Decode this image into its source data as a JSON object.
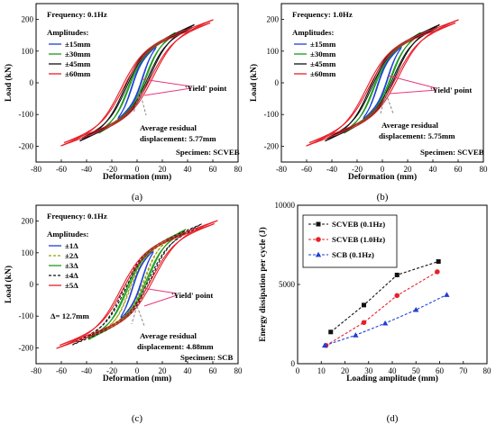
{
  "colors": {
    "blue": "#1f3fd6",
    "green": "#1a9b1a",
    "black": "#111111",
    "red": "#e8202a",
    "olive": "#9aa000",
    "pink": "#e8377a",
    "grey": "#888888"
  },
  "chart_data": [
    {
      "type": "line",
      "panel_label": "(a)",
      "frequency": "Frequency: 0.1Hz",
      "legend_title": "Amplitudes:",
      "xlabel": "Deformation (mm)",
      "ylabel": "Load (kN)",
      "xlim": [
        -80,
        80
      ],
      "ylim": [
        -250,
        250
      ],
      "xticks": [
        "-80",
        "-60",
        "-40",
        "-20",
        "0",
        "20",
        "40",
        "60",
        "80"
      ],
      "yticks": [
        "-200",
        "-100",
        "0",
        "100",
        "200"
      ],
      "series": [
        {
          "name": "±15mm",
          "amp": 15,
          "color": "#1f3fd6"
        },
        {
          "name": "±30mm",
          "amp": 30,
          "color": "#1a9b1a"
        },
        {
          "name": "±45mm",
          "amp": 45,
          "color": "#111111"
        },
        {
          "name": "±60mm",
          "amp": 60,
          "color": "#e8202a"
        }
      ],
      "yield_label": "'Yield' point",
      "residual_label_1": "Average residual",
      "residual_label_2": "displacement: 5.77mm",
      "specimen": "Specimen: SCVEB"
    },
    {
      "type": "line",
      "panel_label": "(b)",
      "frequency": "Frequency: 1.0Hz",
      "legend_title": "Amplitudes:",
      "xlabel": "Deformation (mm)",
      "ylabel": "Load (kN)",
      "xlim": [
        -80,
        80
      ],
      "ylim": [
        -250,
        250
      ],
      "xticks": [
        "-80",
        "-60",
        "-40",
        "-20",
        "0",
        "20",
        "40",
        "60",
        "80"
      ],
      "yticks": [
        "-200",
        "-100",
        "0",
        "100",
        "200"
      ],
      "series": [
        {
          "name": "±15mm",
          "amp": 15,
          "color": "#1f3fd6"
        },
        {
          "name": "±30mm",
          "amp": 30,
          "color": "#1a9b1a"
        },
        {
          "name": "±45mm",
          "amp": 45,
          "color": "#111111"
        },
        {
          "name": "±60mm",
          "amp": 60,
          "color": "#e8202a"
        }
      ],
      "yield_label": "'Yield' point",
      "residual_label_1": "Average residual",
      "residual_label_2": "displacement: 5.75mm",
      "specimen": "Specimen: SCVEB"
    },
    {
      "type": "line",
      "panel_label": "(c)",
      "frequency": "Frequency: 0.1Hz",
      "legend_title": "Amplitudes:",
      "xlabel": "Deformation (mm)",
      "ylabel": "Load (kN)",
      "xlim": [
        -80,
        80
      ],
      "ylim": [
        -250,
        250
      ],
      "xticks": [
        "-80",
        "-60",
        "-40",
        "-20",
        "0",
        "20",
        "40",
        "60",
        "80"
      ],
      "yticks": [
        "-200",
        "-100",
        "0",
        "100",
        "200"
      ],
      "series": [
        {
          "name": "±1Δ",
          "amp": 12.7,
          "color": "#1f3fd6",
          "dash": false
        },
        {
          "name": "±2Δ",
          "amp": 25.4,
          "color": "#9aa000",
          "dash": true
        },
        {
          "name": "±3Δ",
          "amp": 38.1,
          "color": "#1a9b1a",
          "dash": false
        },
        {
          "name": "±4Δ",
          "amp": 50.8,
          "color": "#111111",
          "dash": true
        },
        {
          "name": "±5Δ",
          "amp": 63.5,
          "color": "#e8202a",
          "dash": false
        }
      ],
      "delta_note": "Δ= 12.7mm",
      "yield_label": "'Yield' point",
      "residual_label_1": "Average residual",
      "residual_label_2": "displacement: 4.88mm",
      "specimen": "Specimen: SCB"
    },
    {
      "type": "scatter",
      "panel_label": "(d)",
      "xlabel": "Loading amplitude (mm)",
      "ylabel": "Energy dissipation per cycle (J)",
      "xlim": [
        0,
        80
      ],
      "ylim": [
        0,
        10000
      ],
      "xticks": [
        "0",
        "10",
        "20",
        "30",
        "40",
        "50",
        "60",
        "70",
        "80"
      ],
      "yticks": [
        "0",
        "5000",
        "10000"
      ],
      "series": [
        {
          "name": "SCVEB (0.1Hz)",
          "marker": "square",
          "color": "#111111",
          "x": [
            14,
            28,
            42,
            59.5
          ],
          "y": [
            2000,
            3700,
            5600,
            6450
          ]
        },
        {
          "name": "SCVEB (1.0Hz)",
          "marker": "circle",
          "color": "#e8202a",
          "x": [
            12,
            28,
            42,
            59
          ],
          "y": [
            1150,
            2600,
            4300,
            5800
          ]
        },
        {
          "name": "SCB     (0.1Hz)",
          "marker": "triangle",
          "color": "#1f3fd6",
          "x": [
            11.5,
            24.5,
            37,
            50,
            63
          ],
          "y": [
            1150,
            1800,
            2550,
            3400,
            4350
          ]
        }
      ]
    }
  ]
}
